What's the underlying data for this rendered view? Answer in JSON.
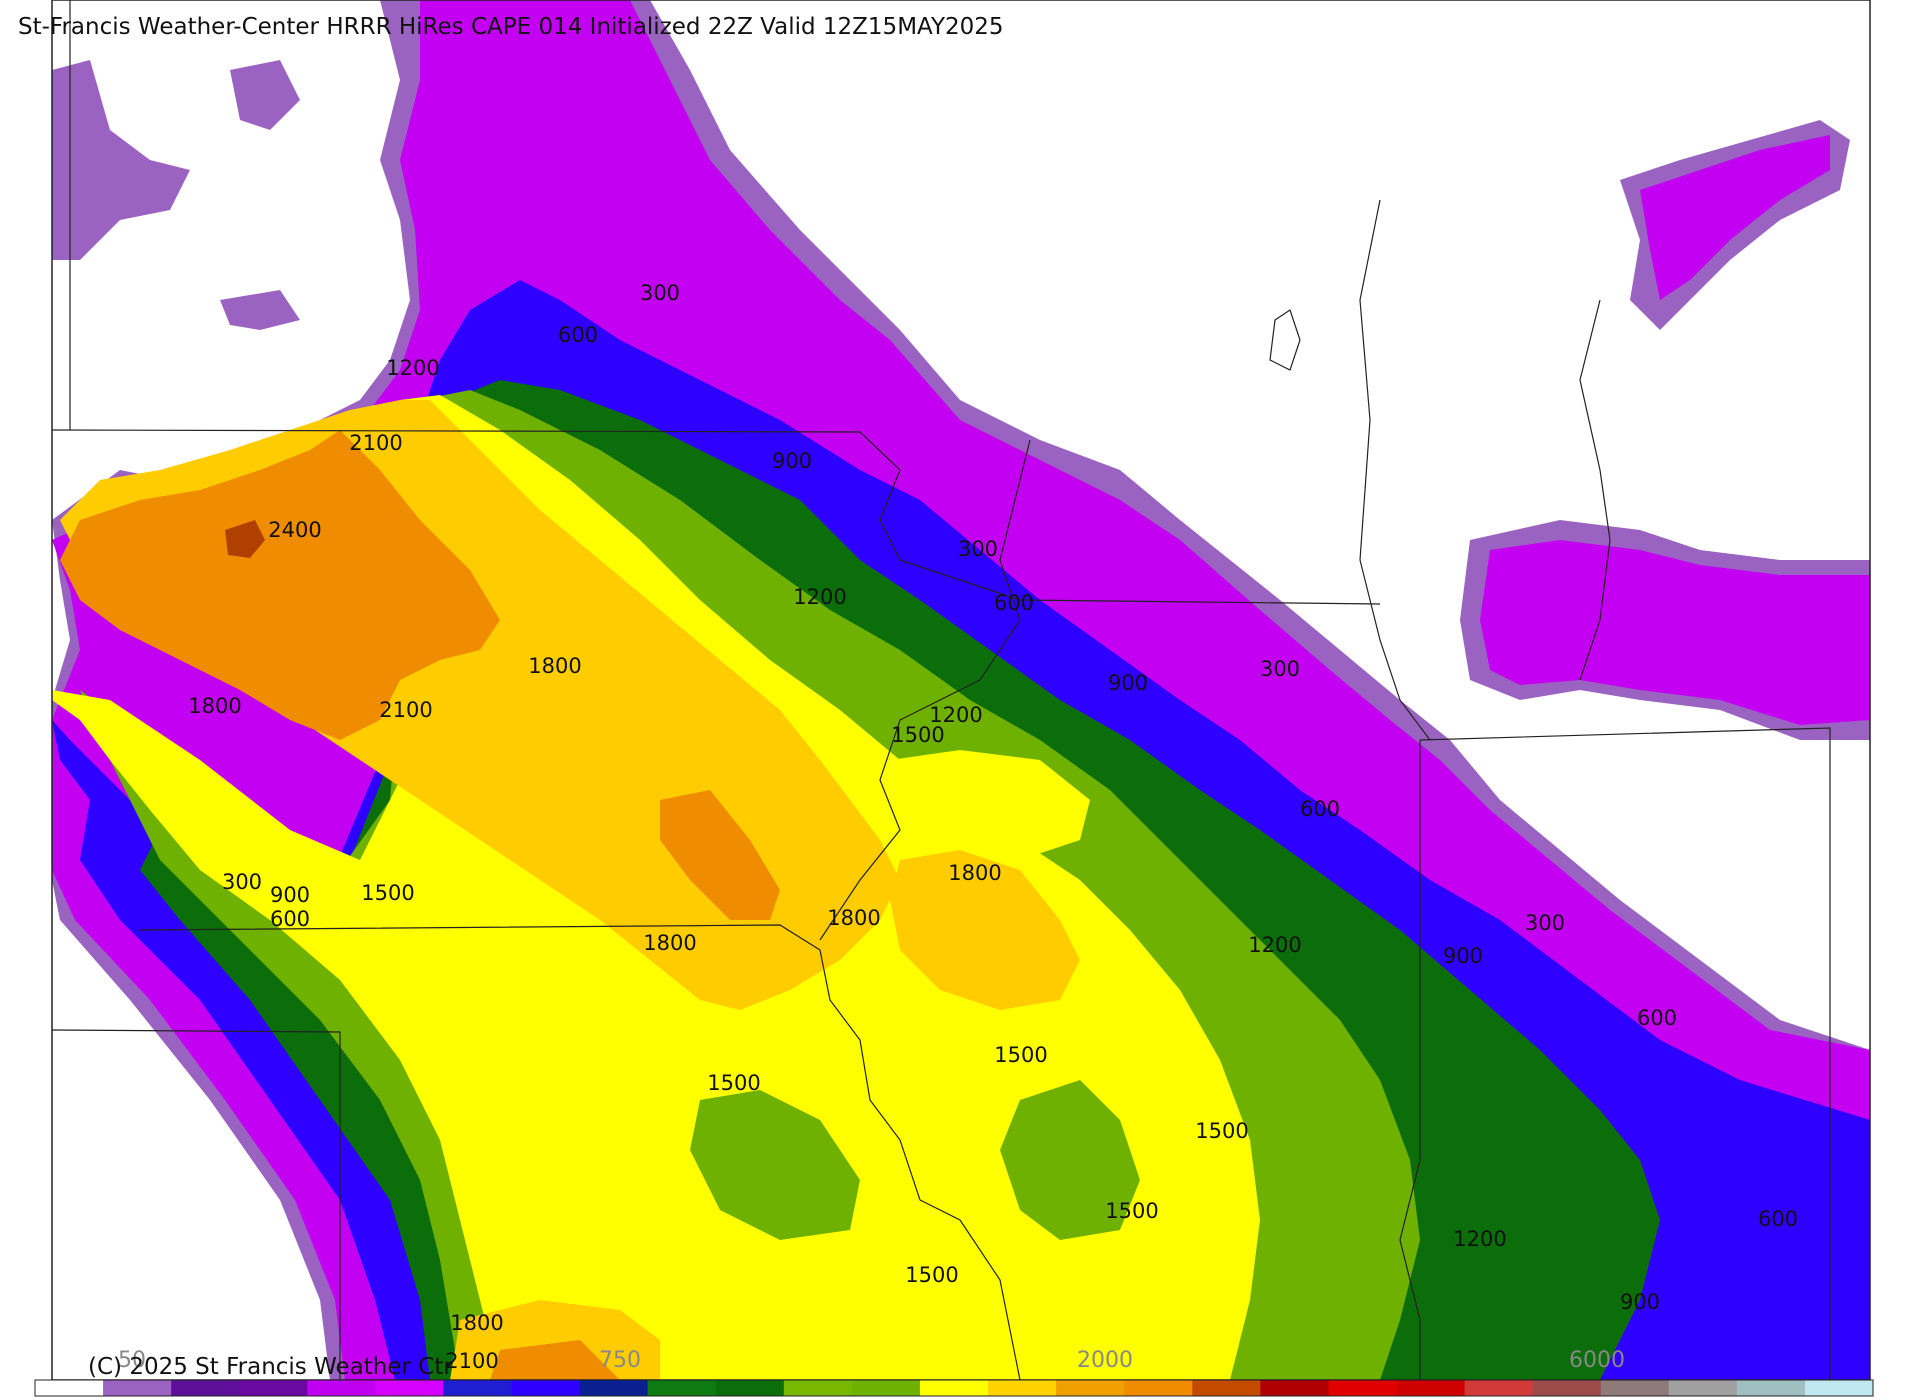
{
  "title": "St-Francis Weather-Center HRRR HiRes CAPE  014 Initialized  22Z Valid 12Z15MAY2025",
  "copyright": "(C) 2025 St Francis Weather Ctr",
  "colorbar": {
    "colors": [
      "#ffffff",
      "#9b63c1",
      "#5e0f99",
      "#6a0aa3",
      "#c000f0",
      "#d500ff",
      "#1f1fd1",
      "#2e00ff",
      "#0a2090",
      "#0d7a12",
      "#0b6e0b",
      "#79b800",
      "#6fb100",
      "#ffff00",
      "#ffd200",
      "#f0a000",
      "#ef8c00",
      "#c44a00",
      "#b00000",
      "#e10000",
      "#cf0000",
      "#d23a3a",
      "#9c4a4a",
      "#8f7a7a",
      "#a0a0a0",
      "#9fbfc0",
      "#bfe8f0"
    ],
    "tick_labels": [
      "50",
      "750",
      "2000",
      "6000"
    ]
  },
  "contour_labels": [
    {
      "text": "300"
    },
    {
      "text": "600"
    },
    {
      "text": "1200"
    },
    {
      "text": "2100"
    },
    {
      "text": "2400"
    },
    {
      "text": "900"
    },
    {
      "text": "300"
    },
    {
      "text": "1200"
    },
    {
      "text": "600"
    },
    {
      "text": "1800"
    },
    {
      "text": "900"
    },
    {
      "text": "300"
    },
    {
      "text": "1800"
    },
    {
      "text": "2100"
    },
    {
      "text": "1200"
    },
    {
      "text": "1500"
    },
    {
      "text": "600"
    },
    {
      "text": "1800"
    },
    {
      "text": "300"
    },
    {
      "text": "900"
    },
    {
      "text": "1500"
    },
    {
      "text": "600"
    },
    {
      "text": "1800"
    },
    {
      "text": "1800"
    },
    {
      "text": "1200"
    },
    {
      "text": "900"
    },
    {
      "text": "300"
    },
    {
      "text": "600"
    },
    {
      "text": "1500"
    },
    {
      "text": "1500"
    },
    {
      "text": "1500"
    },
    {
      "text": "1500"
    },
    {
      "text": "1200"
    },
    {
      "text": "600"
    },
    {
      "text": "1500"
    },
    {
      "text": "900"
    },
    {
      "text": "1800"
    },
    {
      "text": "2100"
    }
  ]
}
